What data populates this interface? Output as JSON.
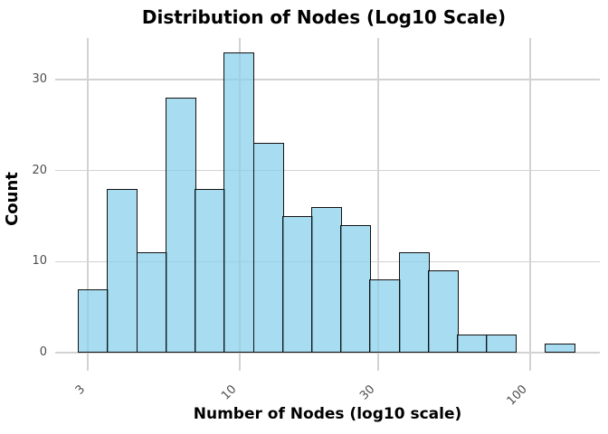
{
  "title": "Distribution of Nodes (Log10 Scale)",
  "chart_data": {
    "type": "bar",
    "subtype": "histogram",
    "title": "Distribution of Nodes (Log10 Scale)",
    "xlabel": "Number of Nodes (log10 scale)",
    "ylabel": "Count",
    "x_scale": "log10",
    "x_ticks": [
      3,
      10,
      30,
      100
    ],
    "y_ticks": [
      0,
      10,
      20,
      30
    ],
    "ylim": [
      0,
      34.5
    ],
    "bin_edges_log10": [
      0.4459,
      0.5463,
      0.6468,
      0.7472,
      0.8477,
      0.9481,
      1.0486,
      1.149,
      1.2494,
      1.3499,
      1.4503,
      1.5508,
      1.6512,
      1.7516,
      1.8521,
      1.9525,
      2.053,
      2.1534
    ],
    "counts": [
      7,
      18,
      11,
      28,
      18,
      33,
      23,
      15,
      16,
      14,
      8,
      11,
      9,
      2,
      2,
      0,
      1
    ],
    "bar_fill": "#87CEEB",
    "bar_alpha": 0.72,
    "bar_edge_color": "#111111",
    "grid_color": "#D2D2D2",
    "tick_text_color": "#4D4D4D",
    "grid": true,
    "legend": false
  }
}
